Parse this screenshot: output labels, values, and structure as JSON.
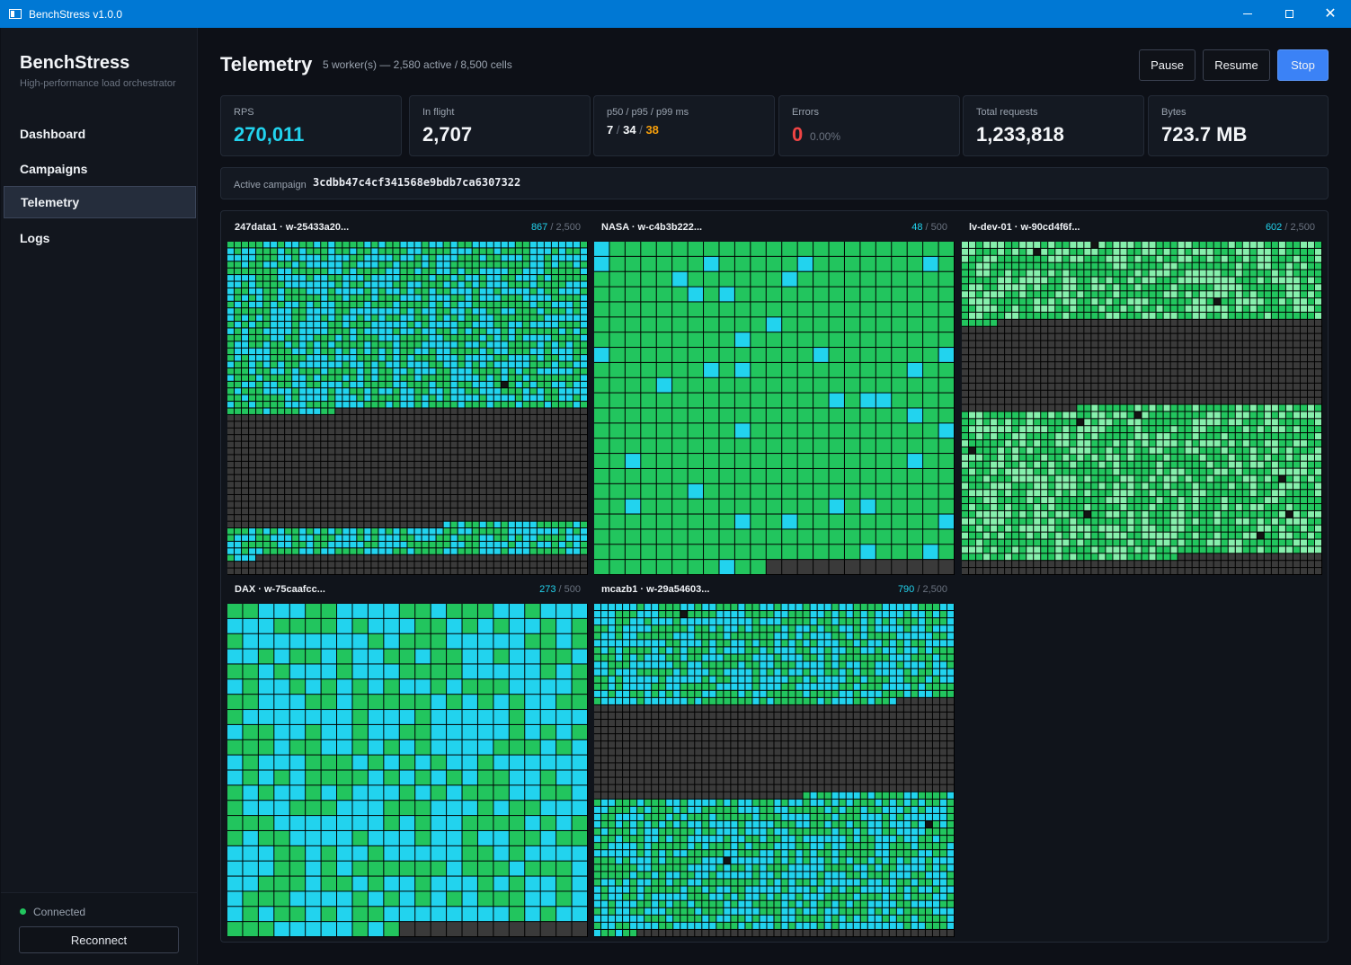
{
  "window": {
    "title": "BenchStress  v1.0.0"
  },
  "sidebar": {
    "brand": "BenchStress",
    "tagline": "High-performance load orchestrator",
    "items": [
      {
        "label": "Dashboard"
      },
      {
        "label": "Campaigns"
      },
      {
        "label": "Telemetry",
        "active": true
      },
      {
        "label": "Logs"
      }
    ],
    "status": "Connected",
    "reconnect_label": "Reconnect"
  },
  "header": {
    "title": "Telemetry",
    "subtitle": "5 worker(s) — 2,580 active / 8,500 cells",
    "pause_label": "Pause",
    "resume_label": "Resume",
    "stop_label": "Stop"
  },
  "stats": {
    "rps": {
      "label": "RPS",
      "value": "270,011"
    },
    "inflight": {
      "label": "In flight",
      "value": "2,707"
    },
    "latency": {
      "label": "p50 / p95 / p99 ms",
      "p50": "7",
      "p95": "34",
      "p99": "38",
      "sep": "/"
    },
    "errors": {
      "label": "Errors",
      "value": "0",
      "pct": "0.00%"
    },
    "total": {
      "label": "Total requests",
      "value": "1,233,818"
    },
    "bytes": {
      "label": "Bytes",
      "value": "723.7 MB"
    }
  },
  "campaign": {
    "label": "Active campaign",
    "id": "3cdbb47c4cf341568e9bdb7ca6307322"
  },
  "colors": {
    "ok": "#22c55e",
    "active": "#22d3ee",
    "light": "#86efac",
    "idle": "#3a3a3a",
    "error": "#141414",
    "accent": "#3b82f6"
  },
  "workers": [
    {
      "name": "247data1  ·  w-25433a20...",
      "active": "867",
      "total": "2,500",
      "cols": 50,
      "rows": 50,
      "mode": "mixed",
      "idleStart": 1265,
      "idleEnd": 2130,
      "tailIdle": 2354
    },
    {
      "name": "NASA  ·  w-c4b3b222...",
      "active": "48",
      "total": "500",
      "cols": 23,
      "rows": 22,
      "mode": "sparse",
      "tailIdle": 494
    },
    {
      "name": "lv-dev-01  ·  w-90cd4f6f...",
      "active": "602",
      "total": "2,500",
      "cols": 50,
      "rows": 47,
      "mode": "light",
      "idleStart": 555,
      "idleEnd": 1166,
      "tailIdle": 2230
    },
    {
      "name": "DAX  ·  w-75caafcc...",
      "active": "273",
      "total": "500",
      "cols": 23,
      "rows": 22,
      "mode": "dense",
      "tailIdle": 494
    },
    {
      "name": "mcazb1  ·  w-29a54603...",
      "active": "790",
      "total": "2,500",
      "cols": 50,
      "rows": 46,
      "mode": "mixed",
      "idleStart": 692,
      "idleEnd": 1329,
      "tailIdle": 2256
    }
  ]
}
